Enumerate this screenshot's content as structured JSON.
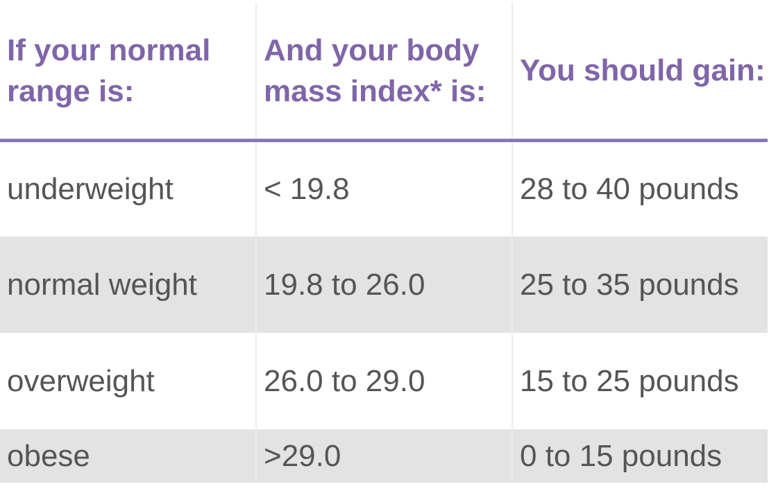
{
  "headers": [
    "If your normal range is:",
    "And your body mass index* is:",
    "You should gain:"
  ],
  "rows": [
    {
      "range": "underweight",
      "bmi": "< 19.8",
      "gain": "28 to 40 pounds"
    },
    {
      "range": "normal weight",
      "bmi": "19.8 to 26.0",
      "gain": "25 to 35 pounds"
    },
    {
      "range": "overweight",
      "bmi": "26.0 to 29.0",
      "gain": "15 to 25 pounds"
    },
    {
      "range": "obese",
      "bmi": ">29.0",
      "gain": "0 to 15 pounds"
    }
  ],
  "colors": {
    "header_text": "#8065a9",
    "header_rule": "#8a76b4",
    "body_text": "#555555",
    "stripe": "#e3e3e3"
  }
}
